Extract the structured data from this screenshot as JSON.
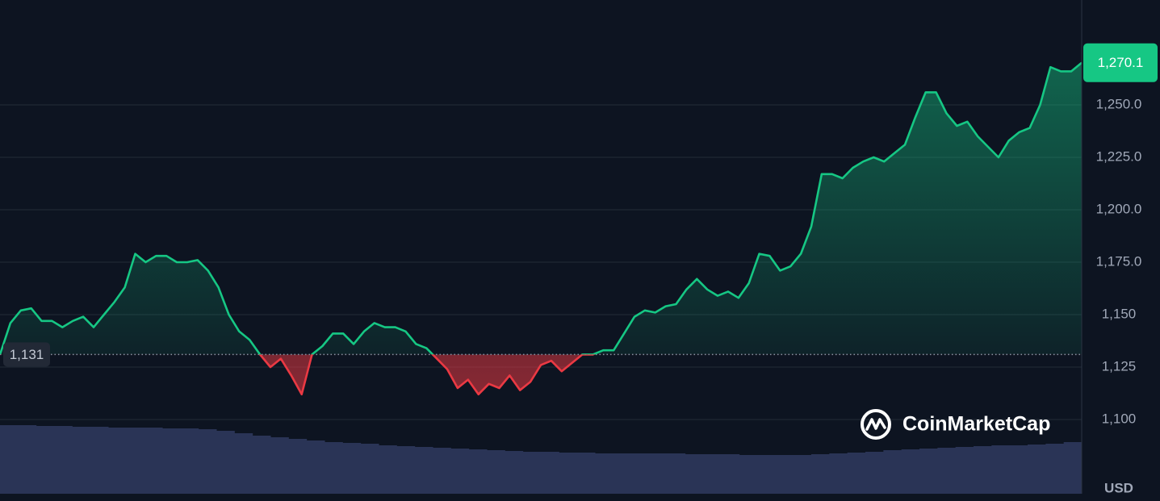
{
  "chart_data": {
    "type": "line",
    "series": [
      {
        "color": "#16c784",
        "values": [
          1131,
          1146,
          1152,
          1153,
          1147,
          1147,
          1144,
          1147,
          1149,
          1144,
          1150,
          1156,
          1163,
          1179,
          1175,
          1178,
          1178,
          1175,
          1175,
          1176,
          1171,
          1163,
          1150,
          1142,
          1138,
          1131,
          1125,
          1129,
          1121,
          1112,
          1131,
          1135,
          1141,
          1141,
          1136,
          1142,
          1146,
          1144,
          1144,
          1142,
          1136,
          1134,
          1129,
          1124,
          1115,
          1119,
          1112,
          1117,
          1115,
          1121,
          1114,
          1118,
          1126,
          1128,
          1123,
          1127,
          1131,
          1131,
          1133,
          1133,
          1141,
          1149,
          1152,
          1151,
          1154,
          1155,
          1162,
          1167,
          1162,
          1159,
          1161,
          1158,
          1165,
          1179,
          1178,
          1171,
          1173,
          1179,
          1192,
          1217,
          1217,
          1215,
          1220,
          1223,
          1225,
          1223,
          1227,
          1231,
          1244,
          1256,
          1256,
          1246,
          1240,
          1242,
          1235,
          1230,
          1225,
          1233,
          1237,
          1239,
          1250,
          1268,
          1266,
          1266,
          1270.1
        ]
      }
    ],
    "below_color": "#ea3943",
    "baseline": {
      "value": 1131,
      "label": "1,131"
    },
    "last_price": {
      "value": 1270.1,
      "label": "1,270.1"
    },
    "volume": [
      85,
      85,
      84,
      84,
      83,
      83,
      82,
      82,
      82,
      81,
      81,
      80,
      78,
      75,
      72,
      70,
      68,
      66,
      64,
      63,
      62,
      60,
      59,
      58,
      57,
      56,
      55,
      54,
      53,
      52,
      52,
      51,
      51,
      50,
      50,
      50,
      50,
      50,
      49,
      49,
      49,
      48,
      48,
      48,
      48,
      49,
      50,
      51,
      52,
      54,
      55,
      56,
      57,
      58,
      59,
      60,
      60,
      61,
      62,
      64
    ],
    "volume_color": "#2a3456",
    "ylim": [
      1065,
      1300
    ],
    "yticks": [
      {
        "value": 1100,
        "label": "1,100"
      },
      {
        "value": 1125,
        "label": "1,125"
      },
      {
        "value": 1150,
        "label": "1,150"
      },
      {
        "value": 1175,
        "label": "1,175.0"
      },
      {
        "value": 1200,
        "label": "1,200.0"
      },
      {
        "value": 1225,
        "label": "1,225.0"
      },
      {
        "value": 1250,
        "label": "1,250.0"
      }
    ],
    "grid": true,
    "currency": "USD",
    "watermark": "CoinMarketCap"
  }
}
